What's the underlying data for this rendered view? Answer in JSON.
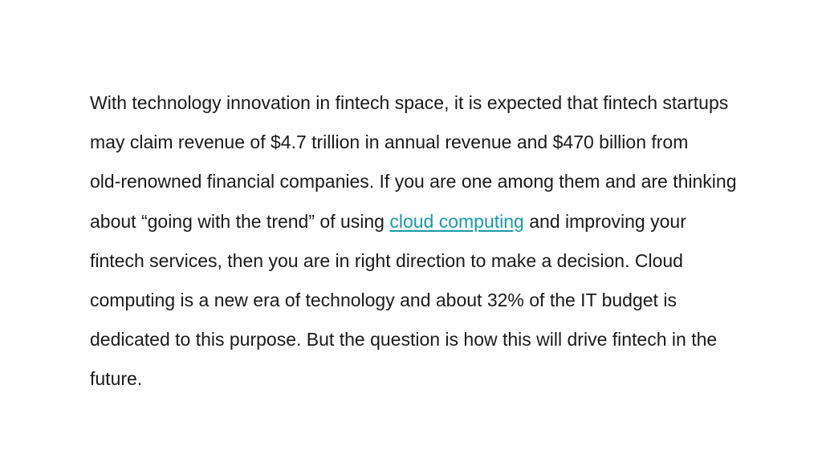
{
  "paragraph": {
    "line1": "With technology innovation in fintech space, it is expected that fintech startups",
    "line2": "may claim revenue of $4.7 trillion in annual revenue and $470 billion from",
    "line3": "old-renowned financial companies. If you are one among them and are thinking",
    "line4_before": "about “going with the trend” of using ",
    "link_text": "cloud computing",
    "line4_after": " and improving your",
    "line5": "fintech services, then you are in right direction to make a decision. Cloud",
    "line6": "computing is a new era of technology and about 32% of the IT budget is",
    "line7": "dedicated to this purpose. But the question is how this will drive fintech in the",
    "line8": "future."
  },
  "colors": {
    "text": "#1a1a1a",
    "link": "#1a9ba6",
    "background": "#ffffff"
  }
}
